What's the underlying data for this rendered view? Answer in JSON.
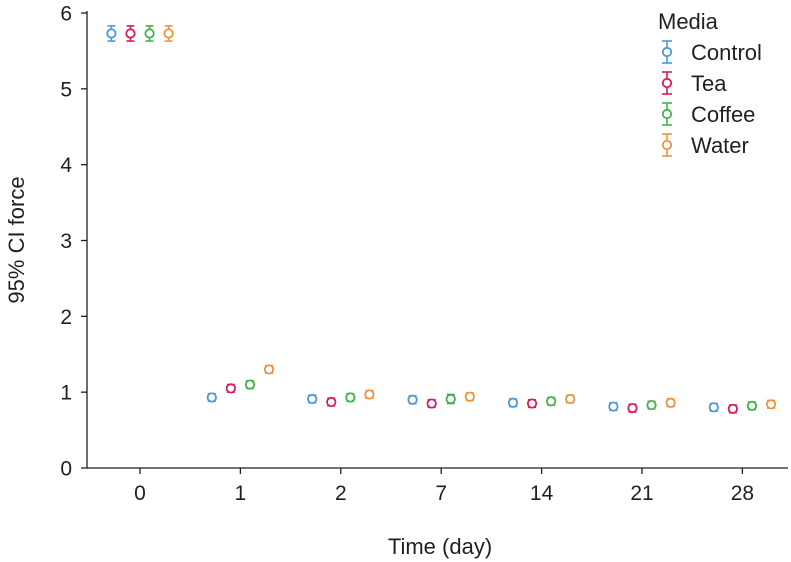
{
  "chart_data": {
    "type": "scatter",
    "title": "",
    "xlabel": "Time (day)",
    "ylabel": "95% CI force",
    "categories": [
      "0",
      "1",
      "2",
      "7",
      "14",
      "21",
      "28"
    ],
    "ylim": [
      0,
      6
    ],
    "yticks": [
      "0",
      "1",
      "2",
      "3",
      "4",
      "5",
      "6"
    ],
    "grid": false,
    "legend": {
      "title": "Media",
      "position": "top-right"
    },
    "series": [
      {
        "name": "Control",
        "color": "#4a9bd4",
        "values": [
          5.73,
          0.93,
          0.91,
          0.9,
          0.86,
          0.81,
          0.8
        ],
        "errors": [
          0.1,
          0.05,
          0.05,
          0.05,
          0.05,
          0.05,
          0.05
        ]
      },
      {
        "name": "Tea",
        "color": "#d81b60",
        "values": [
          5.73,
          1.05,
          0.87,
          0.85,
          0.85,
          0.79,
          0.78
        ],
        "errors": [
          0.1,
          0.05,
          0.05,
          0.05,
          0.05,
          0.05,
          0.05
        ]
      },
      {
        "name": "Coffee",
        "color": "#3fb449",
        "values": [
          5.73,
          1.1,
          0.93,
          0.91,
          0.88,
          0.83,
          0.82
        ],
        "errors": [
          0.1,
          0.05,
          0.05,
          0.06,
          0.05,
          0.05,
          0.05
        ]
      },
      {
        "name": "Water",
        "color": "#f0913e",
        "values": [
          5.73,
          1.3,
          0.97,
          0.94,
          0.91,
          0.86,
          0.84
        ],
        "errors": [
          0.1,
          0.05,
          0.05,
          0.05,
          0.05,
          0.05,
          0.05
        ]
      }
    ]
  }
}
